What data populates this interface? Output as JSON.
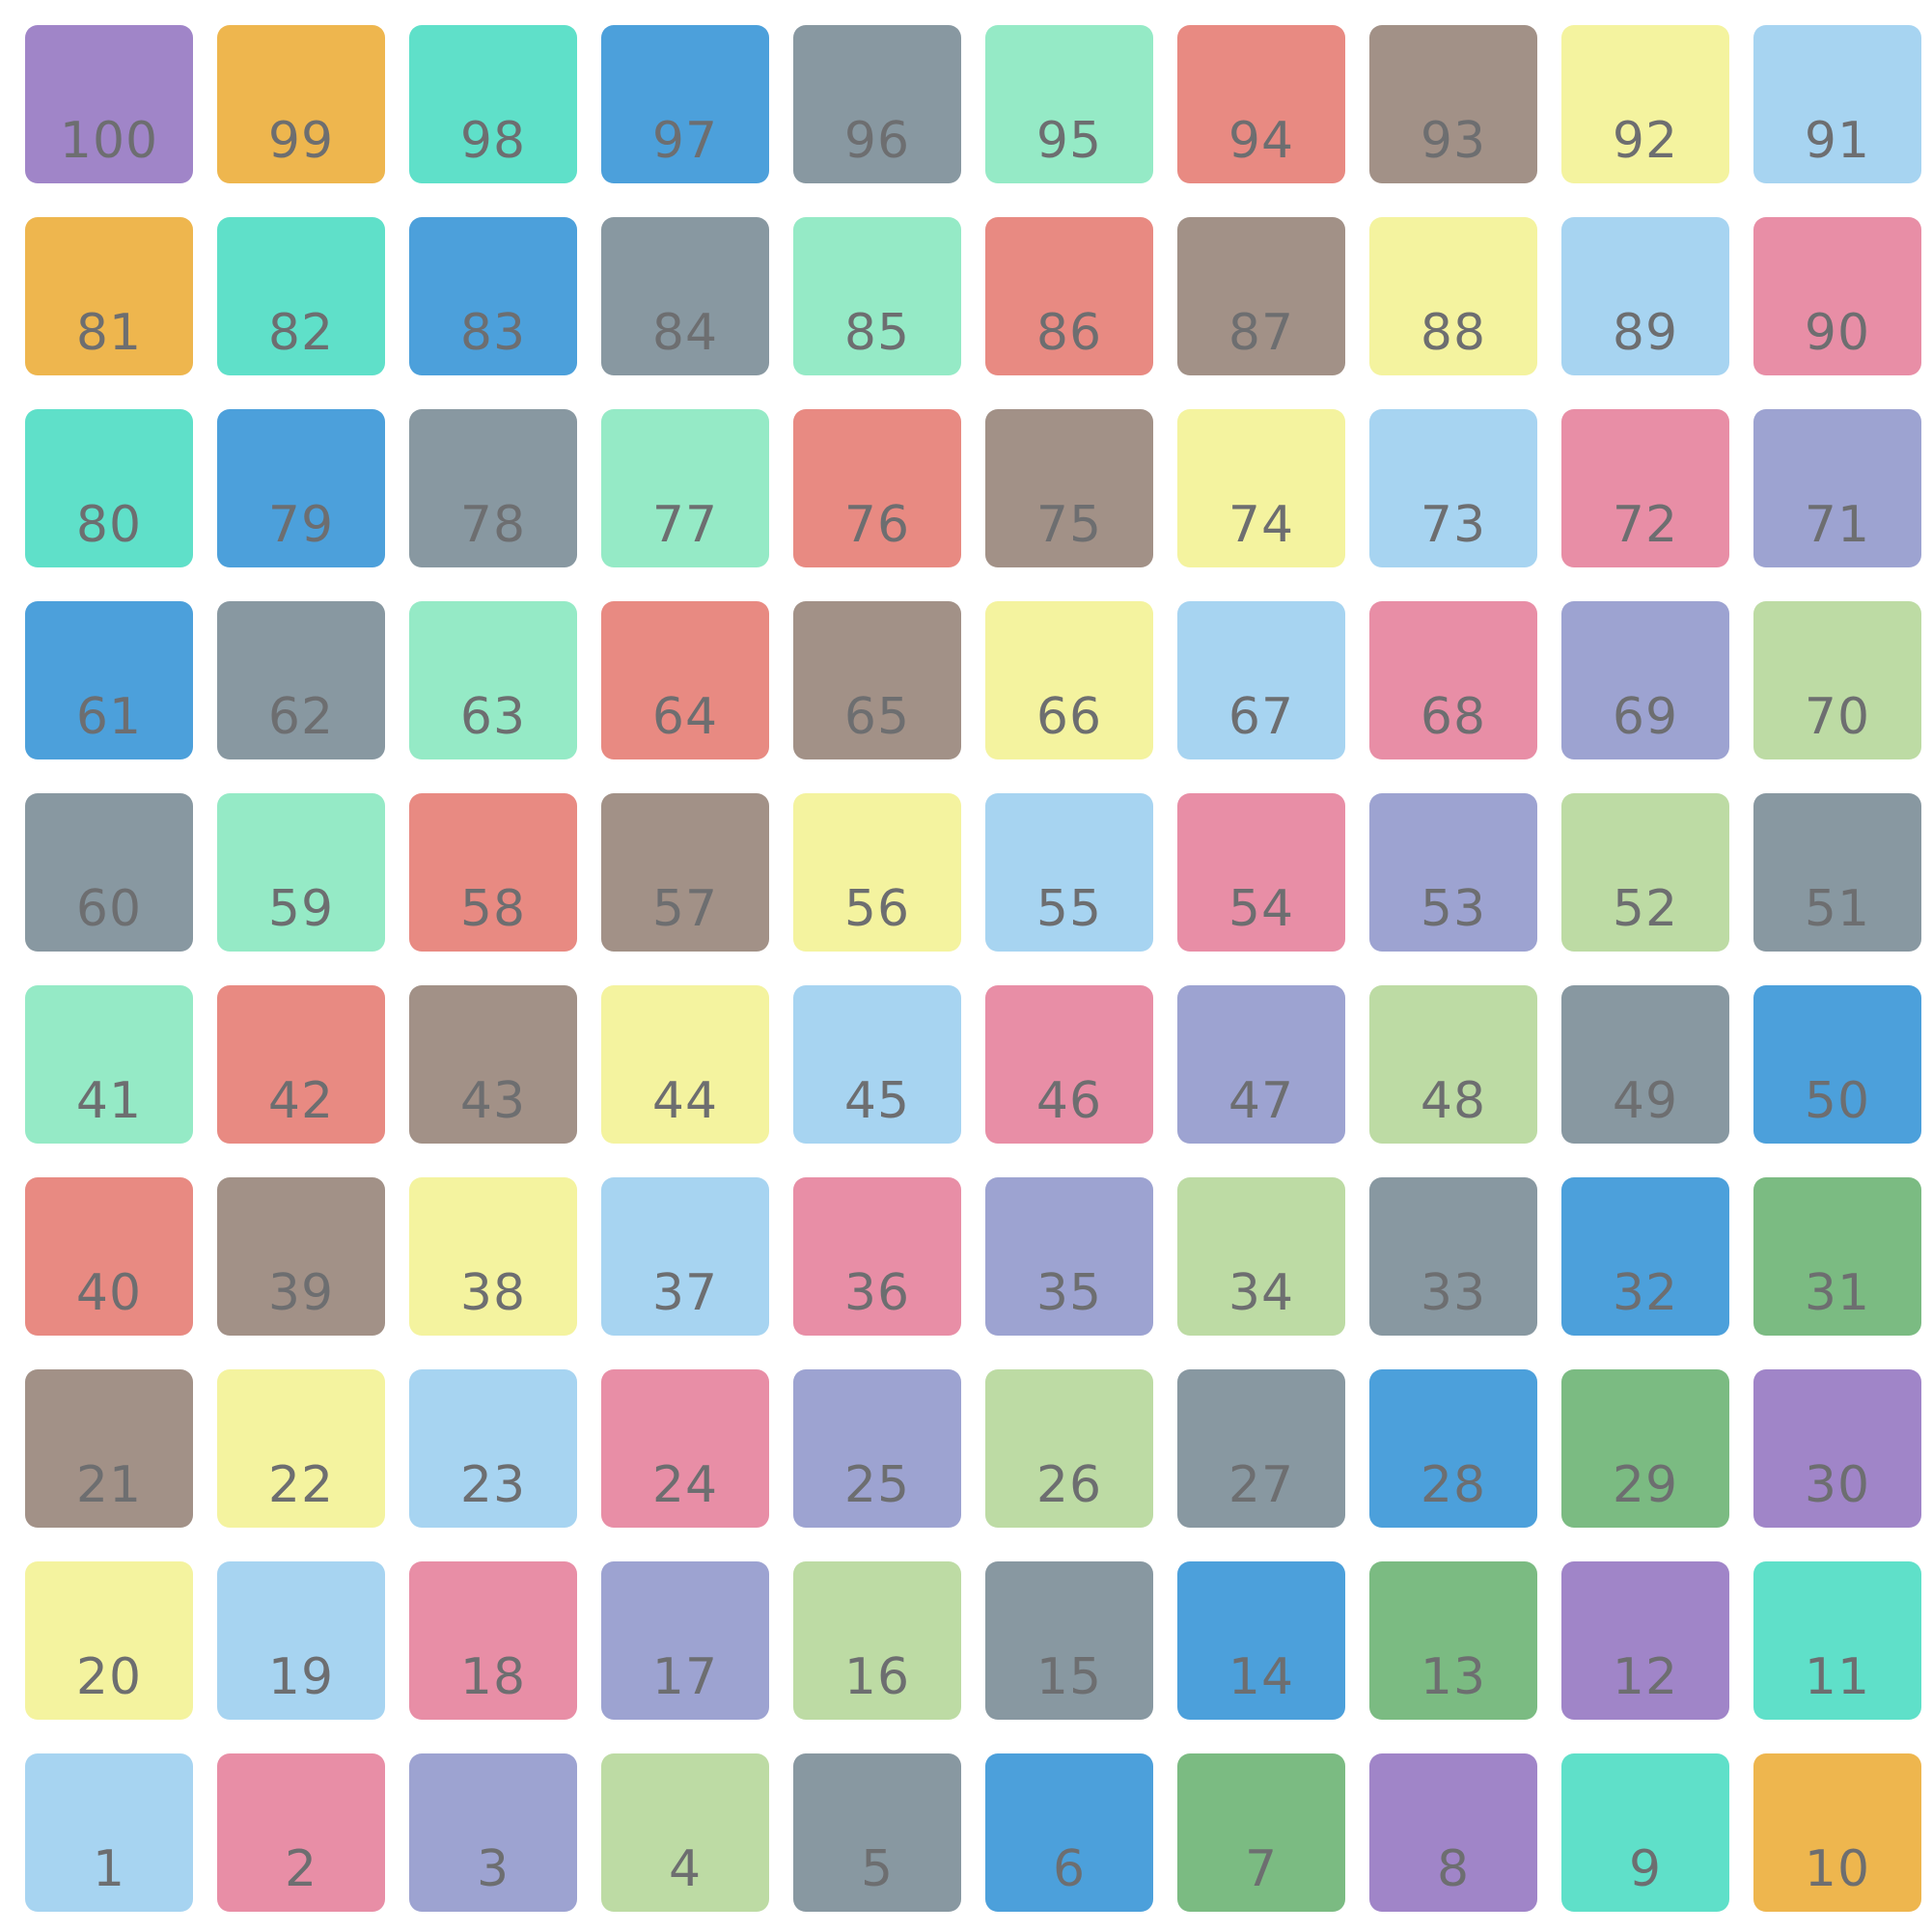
{
  "board": {
    "rows": [
      [
        {
          "n": "100",
          "c": "#a085c8"
        },
        {
          "n": "99",
          "c": "#eeb64e"
        },
        {
          "n": "98",
          "c": "#5fe0c9"
        },
        {
          "n": "97",
          "c": "#4ca0db"
        },
        {
          "n": "96",
          "c": "#8898a1"
        },
        {
          "n": "95",
          "c": "#95eac6"
        },
        {
          "n": "94",
          "c": "#e88a82"
        },
        {
          "n": "93",
          "c": "#a29187"
        },
        {
          "n": "92",
          "c": "#f4f39f"
        },
        {
          "n": "91",
          "c": "#a7d4f1"
        }
      ],
      [
        {
          "n": "81",
          "c": "#eeb64e"
        },
        {
          "n": "82",
          "c": "#5fe0c9"
        },
        {
          "n": "83",
          "c": "#4ca0db"
        },
        {
          "n": "84",
          "c": "#8898a1"
        },
        {
          "n": "85",
          "c": "#95eac6"
        },
        {
          "n": "86",
          "c": "#e88a82"
        },
        {
          "n": "87",
          "c": "#a29187"
        },
        {
          "n": "88",
          "c": "#f4f39f"
        },
        {
          "n": "89",
          "c": "#a7d4f1"
        },
        {
          "n": "90",
          "c": "#e88ea6"
        }
      ],
      [
        {
          "n": "80",
          "c": "#5fe0c9"
        },
        {
          "n": "79",
          "c": "#4ca0db"
        },
        {
          "n": "78",
          "c": "#8898a1"
        },
        {
          "n": "77",
          "c": "#95eac6"
        },
        {
          "n": "76",
          "c": "#e88a82"
        },
        {
          "n": "75",
          "c": "#a29187"
        },
        {
          "n": "74",
          "c": "#f4f39f"
        },
        {
          "n": "73",
          "c": "#a7d4f1"
        },
        {
          "n": "72",
          "c": "#e88ea6"
        },
        {
          "n": "71",
          "c": "#9da3d1"
        }
      ],
      [
        {
          "n": "61",
          "c": "#4ca0db"
        },
        {
          "n": "62",
          "c": "#8898a1"
        },
        {
          "n": "63",
          "c": "#95eac6"
        },
        {
          "n": "64",
          "c": "#e88a82"
        },
        {
          "n": "65",
          "c": "#a29187"
        },
        {
          "n": "66",
          "c": "#f4f39f"
        },
        {
          "n": "67",
          "c": "#a7d4f1"
        },
        {
          "n": "68",
          "c": "#e88ea6"
        },
        {
          "n": "69",
          "c": "#9da3d1"
        },
        {
          "n": "70",
          "c": "#bddba4"
        }
      ],
      [
        {
          "n": "60",
          "c": "#8898a1"
        },
        {
          "n": "59",
          "c": "#95eac6"
        },
        {
          "n": "58",
          "c": "#e88a82"
        },
        {
          "n": "57",
          "c": "#a29187"
        },
        {
          "n": "56",
          "c": "#f4f39f"
        },
        {
          "n": "55",
          "c": "#a7d4f1"
        },
        {
          "n": "54",
          "c": "#e88ea6"
        },
        {
          "n": "53",
          "c": "#9da3d1"
        },
        {
          "n": "52",
          "c": "#bddba4"
        },
        {
          "n": "51",
          "c": "#8898a1"
        }
      ],
      [
        {
          "n": "41",
          "c": "#95eac6"
        },
        {
          "n": "42",
          "c": "#e88a82"
        },
        {
          "n": "43",
          "c": "#a29187"
        },
        {
          "n": "44",
          "c": "#f4f39f"
        },
        {
          "n": "45",
          "c": "#a7d4f1"
        },
        {
          "n": "46",
          "c": "#e88ea6"
        },
        {
          "n": "47",
          "c": "#9da3d1"
        },
        {
          "n": "48",
          "c": "#bddba4"
        },
        {
          "n": "49",
          "c": "#8898a1"
        },
        {
          "n": "50",
          "c": "#4ca0db"
        }
      ],
      [
        {
          "n": "40",
          "c": "#e88a82"
        },
        {
          "n": "39",
          "c": "#a29187"
        },
        {
          "n": "38",
          "c": "#f4f39f"
        },
        {
          "n": "37",
          "c": "#a7d4f1"
        },
        {
          "n": "36",
          "c": "#e88ea6"
        },
        {
          "n": "35",
          "c": "#9da3d1"
        },
        {
          "n": "34",
          "c": "#bddba4"
        },
        {
          "n": "33",
          "c": "#8898a1"
        },
        {
          "n": "32",
          "c": "#4ca0db"
        },
        {
          "n": "31",
          "c": "#7bbb82"
        }
      ],
      [
        {
          "n": "21",
          "c": "#a29187"
        },
        {
          "n": "22",
          "c": "#f4f39f"
        },
        {
          "n": "23",
          "c": "#a7d4f1"
        },
        {
          "n": "24",
          "c": "#e88ea6"
        },
        {
          "n": "25",
          "c": "#9da3d1"
        },
        {
          "n": "26",
          "c": "#bddba4"
        },
        {
          "n": "27",
          "c": "#8898a1"
        },
        {
          "n": "28",
          "c": "#4ca0db"
        },
        {
          "n": "29",
          "c": "#7bbb82"
        },
        {
          "n": "30",
          "c": "#a085c8"
        }
      ],
      [
        {
          "n": "20",
          "c": "#f4f39f"
        },
        {
          "n": "19",
          "c": "#a7d4f1"
        },
        {
          "n": "18",
          "c": "#e88ea6"
        },
        {
          "n": "17",
          "c": "#9da3d1"
        },
        {
          "n": "16",
          "c": "#bddba4"
        },
        {
          "n": "15",
          "c": "#8898a1"
        },
        {
          "n": "14",
          "c": "#4ca0db"
        },
        {
          "n": "13",
          "c": "#7bbb82"
        },
        {
          "n": "12",
          "c": "#a085c8"
        },
        {
          "n": "11",
          "c": "#5fe0c9"
        }
      ],
      [
        {
          "n": "1",
          "c": "#a7d4f1"
        },
        {
          "n": "2",
          "c": "#e88ea6"
        },
        {
          "n": "3",
          "c": "#9da3d1"
        },
        {
          "n": "4",
          "c": "#bddba4"
        },
        {
          "n": "5",
          "c": "#8898a1"
        },
        {
          "n": "6",
          "c": "#4ca0db"
        },
        {
          "n": "7",
          "c": "#7bbb82"
        },
        {
          "n": "8",
          "c": "#a085c8"
        },
        {
          "n": "9",
          "c": "#5fe0c9"
        },
        {
          "n": "10",
          "c": "#eeb64e"
        }
      ]
    ]
  }
}
